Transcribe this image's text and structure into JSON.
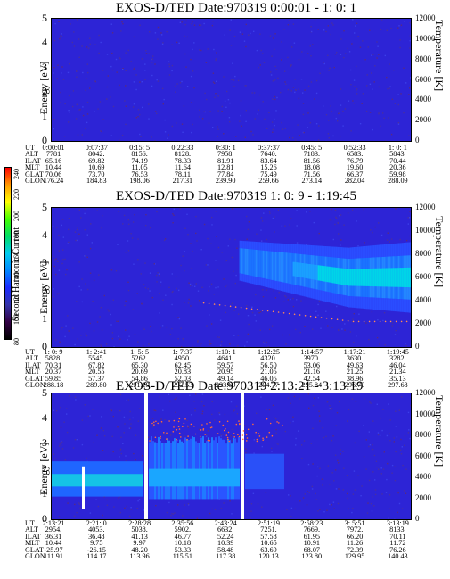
{
  "colorbar": {
    "label": "Second Harmonic Current",
    "ticks": [
      "240",
      "220",
      "200",
      "180",
      "160",
      "140",
      "120",
      "100",
      "80"
    ],
    "colors": [
      "#ff0000",
      "#ff9900",
      "#ffff00",
      "#44ff00",
      "#00dd66",
      "#00ccee",
      "#0088ff",
      "#1a2aff",
      "#3333aa",
      "#330044",
      "#000000"
    ]
  },
  "chart_data": [
    {
      "type": "heatmap",
      "title": "EXOS-D/TED  Date:970319  0:00:01 - 1: 0: 1",
      "ylabel": "Energy [eV]",
      "y2label": "Temperature [K]",
      "ylim": [
        0,
        5
      ],
      "y2lim": [
        0,
        12000
      ],
      "yticks": [
        "0",
        "1",
        "2",
        "3",
        "4",
        "5"
      ],
      "y2ticks": [
        "0",
        "2000",
        "4000",
        "6000",
        "8000",
        "10000",
        "12000"
      ],
      "description_level": "background only (no significant signal)",
      "table": {
        "labels": [
          "UT",
          "ALT",
          "ILAT",
          "MLT",
          "GLAT",
          "GLON"
        ],
        "columns": [
          [
            "0:00:01",
            "7781",
            "65.16",
            "10.44",
            "70.06",
            "176.24"
          ],
          [
            "0:07:37",
            "8042.",
            "69.82",
            "10.69",
            "73.70",
            "184.83"
          ],
          [
            "0:15: 5",
            "8156.",
            "74.19",
            "11.05",
            "76.53",
            "198.06"
          ],
          [
            "0:22:33",
            "8128.",
            "78.33",
            "11.64",
            "78.11",
            "217.31"
          ],
          [
            "0:30: 1",
            "7958.",
            "81.91",
            "12.81",
            "77.84",
            "239.90"
          ],
          [
            "0:37:37",
            "7640.",
            "83.64",
            "15.26",
            "75.49",
            "259.66"
          ],
          [
            "0:45: 5",
            "7183.",
            "81.56",
            "18.08",
            "71.56",
            "273.14"
          ],
          [
            "0:52:33",
            "6583.",
            "76.79",
            "19.60",
            "66.37",
            "282.04"
          ],
          [
            "1: 0: 1",
            "5843.",
            "70.44",
            "20.36",
            "59.98",
            "288.09"
          ]
        ]
      }
    },
    {
      "type": "heatmap",
      "title": "EXOS-D/TED  Date:970319  1: 0: 9 - 1:19:45",
      "ylabel": "Energy [eV]",
      "y2label": "Temperature [K]",
      "ylim": [
        0,
        5
      ],
      "y2lim": [
        0,
        12000
      ],
      "yticks": [
        "0",
        "1",
        "2",
        "3",
        "4",
        "5"
      ],
      "y2ticks": [
        "0",
        "2000",
        "4000",
        "6000",
        "8000",
        "10000",
        "12000"
      ],
      "band": {
        "start_fraction": 0.52,
        "center_eV_late": 2.5,
        "temperature_K_late": 2200
      },
      "table": {
        "labels": [
          "UT",
          "ALT",
          "ILAT",
          "MLT",
          "GLAT",
          "GLON"
        ],
        "columns": [
          [
            "1: 0: 9",
            "5828.",
            "70.31",
            "20.37",
            "59.85",
            "288.18"
          ],
          [
            "1: 2:41",
            "5545.",
            "67.82",
            "20.55",
            "57.37",
            "289.80"
          ],
          [
            "1: 5: 5",
            "5262.",
            "65.30",
            "20.69",
            "54.86",
            "291.19"
          ],
          [
            "1: 7:37",
            "4950.",
            "62.45",
            "20.83",
            "52.03",
            "292.53"
          ],
          [
            "1:10: 1",
            "4641.",
            "59.57",
            "20.95",
            "49.14",
            "293.69"
          ],
          [
            "1:12:25",
            "4320.",
            "56.50",
            "21.05",
            "46.05",
            "294.77"
          ],
          [
            "1:14:57",
            "3970.",
            "53.06",
            "21.16",
            "42.54",
            "295.84"
          ],
          [
            "1:17:21",
            "3630.",
            "49.63",
            "21.25",
            "38.96",
            "296.79"
          ],
          [
            "1:19:45",
            "3282.",
            "46.04",
            "21.34",
            "35.13",
            "297.68"
          ]
        ]
      }
    },
    {
      "type": "heatmap",
      "title": "EXOS-D/TED  Date:970319  2:13:21 - 3:13:19",
      "ylabel": "Energy [eV]",
      "y2label": "Temperature [K]",
      "ylim": [
        0,
        5
      ],
      "y2lim": [
        0,
        12000
      ],
      "yticks": [
        "0",
        "1",
        "2",
        "3",
        "4",
        "5"
      ],
      "y2ticks": [
        "0",
        "2000",
        "4000",
        "6000",
        "8000",
        "10000",
        "12000"
      ],
      "table": {
        "labels": [
          "UT",
          "ALT",
          "ILAT",
          "MLT",
          "GLAT",
          "GLON"
        ],
        "columns": [
          [
            "2:13:21",
            "2954.",
            "36.31",
            "10.44",
            "-25.97",
            "111.91"
          ],
          [
            "2:21: 0",
            "4053.",
            "36.48",
            "9.75",
            "-26.15",
            "114.17"
          ],
          [
            "2:28:28",
            "5038.",
            "41.13",
            "9.97",
            "48.20",
            "113.96"
          ],
          [
            "2:35:56",
            "5902.",
            "46.77",
            "10.18",
            "53.33",
            "115.51"
          ],
          [
            "2:43:24",
            "6632.",
            "52.24",
            "10.39",
            "58.48",
            "117.38"
          ],
          [
            "2:51:19",
            "7251.",
            "57.58",
            "10.65",
            "63.69",
            "120.13"
          ],
          [
            "2:58:23",
            "7669.",
            "61.95",
            "10.91",
            "68.07",
            "123.80"
          ],
          [
            "3: 5:51",
            "7972.",
            "66.20",
            "11.26",
            "72.39",
            "129.95"
          ],
          [
            "3:13:19",
            "8133.",
            "70.11",
            "11.72",
            "76.26",
            "140.43"
          ]
        ]
      }
    }
  ]
}
